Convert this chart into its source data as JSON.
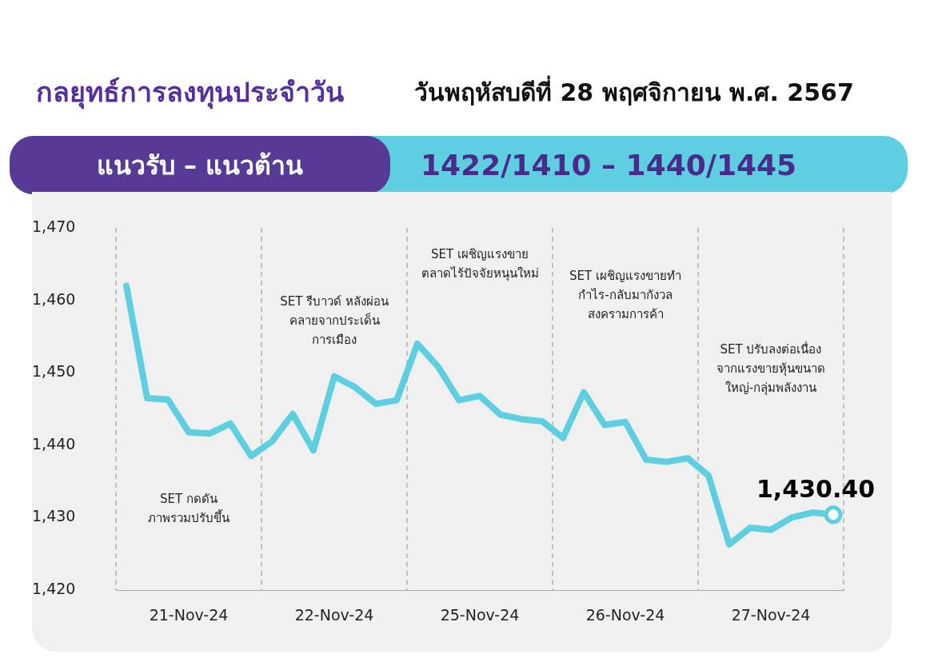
{
  "chart_data": {
    "type": "line",
    "title": "กลยุทธ์การลงทุนประจำวัน",
    "subtitle": "วันพฤหัสบดีที่ 28 พฤศจิกายน พ.ศ. 2567",
    "annotations": [
      "แนวรับ – แนวต้าน",
      "1422/1410 – 1440/1445",
      "SET กดดัน\nภาพรวมปรับขึ้น",
      "SET รีบาวด์ หลังผ่อน\nคลายจากประเด็น\nการเมือง",
      "SET เผชิญแรงขาย\nตลาดไร้ปัจจัยหนุนใหม่",
      "SET เผชิญแรงขายทำ\nกำไร-กลับมากังวล\nสงครามการค้า",
      "SET ปรับลงต่อเนื่อง\nจากแรงขายหุ้นขนาด\nใหญ่-กลุ่มพลังงาน"
    ],
    "categories": [
      null,
      null,
      null,
      "21-Nov-24",
      null,
      null,
      null,
      null,
      null,
      null,
      "22-Nov-24",
      null,
      null,
      null,
      null,
      null,
      null,
      "25-Nov-24",
      null,
      null,
      null,
      null,
      null,
      null,
      "26-Nov-24",
      null,
      null,
      null,
      null,
      null,
      null,
      "27-Nov-24",
      null,
      null,
      null
    ],
    "series": [
      {
        "color": "#5ecfe0",
        "values": [
          1462,
          1446.5,
          1446.3,
          1441.8,
          1441.6,
          1443,
          1438.5,
          1440.5,
          1444.3,
          1439.3,
          1449.5,
          1448,
          1445.7,
          1446.2,
          1454,
          1450.8,
          1446.2,
          1446.8,
          1444.2,
          1443.6,
          1443.3,
          1441,
          1447.3,
          1442.8,
          1443.2,
          1438,
          1437.7,
          1438.2,
          1435.8,
          1426.3,
          1428.6,
          1428.3,
          1430,
          1430.7,
          1430.4
        ],
        "value_labels": [
          null,
          null,
          null,
          null,
          null,
          null,
          null,
          null,
          null,
          null,
          null,
          null,
          null,
          null,
          null,
          null,
          null,
          null,
          null,
          null,
          null,
          null,
          null,
          null,
          null,
          null,
          null,
          null,
          null,
          null,
          null,
          null,
          null,
          null,
          "1,430.40"
        ]
      }
    ],
    "ylim": [
      1420,
      1470
    ],
    "yticks": [
      {
        "value": 1420,
        "label": "1,420"
      },
      {
        "value": 1430,
        "label": "1,430"
      },
      {
        "value": 1440,
        "label": "1,440"
      },
      {
        "value": 1450,
        "label": "1,450"
      },
      {
        "value": 1460,
        "label": "1,460"
      },
      {
        "value": 1470,
        "label": "1,470"
      }
    ],
    "grid": "x",
    "line_style": "solid",
    "legend": false
  }
}
